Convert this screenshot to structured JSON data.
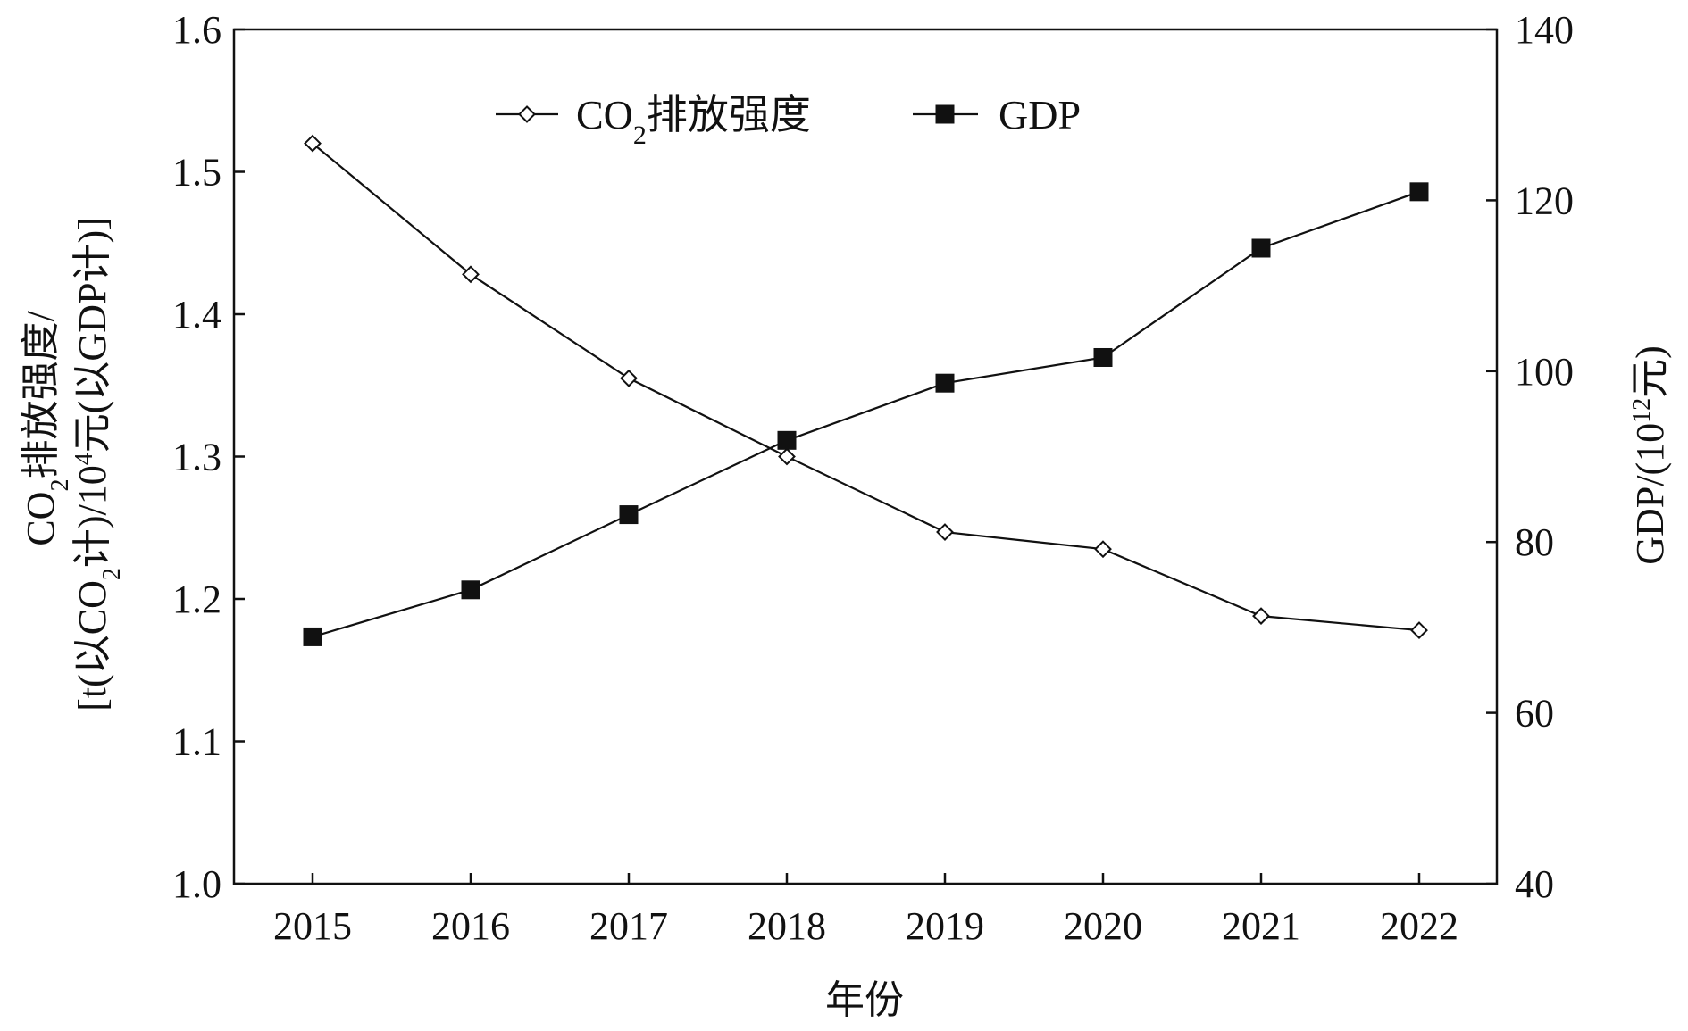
{
  "chart_data": {
    "type": "line",
    "x_label": "年份",
    "categories": [
      "2015",
      "2016",
      "2017",
      "2018",
      "2019",
      "2020",
      "2021",
      "2022"
    ],
    "series": [
      {
        "name": "CO2排放强度",
        "name_parts": {
          "pre": "CO",
          "sub": "2",
          "post": "排放强度"
        },
        "axis": "left",
        "marker": "open-diamond",
        "color": "#111111",
        "values": [
          1.52,
          1.428,
          1.355,
          1.3,
          1.247,
          1.235,
          1.188,
          1.178
        ]
      },
      {
        "name": "GDP",
        "axis": "right",
        "marker": "filled-square",
        "color": "#111111",
        "values": [
          68.9,
          74.4,
          83.2,
          91.9,
          98.6,
          101.6,
          114.4,
          121.0
        ]
      }
    ],
    "y_left": {
      "min": 1.0,
      "max": 1.6,
      "ticks": [
        "1.0",
        "1.1",
        "1.2",
        "1.3",
        "1.4",
        "1.5",
        "1.6"
      ],
      "label_line1": {
        "pre": "CO",
        "sub": "2",
        "post": "排放强度/"
      },
      "label_line2": {
        "pre": "[t(以CO",
        "sub": "2",
        "mid": "计)/10",
        "sup": "4",
        "post": "元(以GDP计)]"
      }
    },
    "y_right": {
      "min": 40,
      "max": 140,
      "ticks": [
        "40",
        "60",
        "80",
        "100",
        "120",
        "140"
      ],
      "label": {
        "pre": "GDP/(10",
        "sup": "12",
        "post": "元)"
      }
    },
    "legend_position": "top-left",
    "grid": false
  }
}
